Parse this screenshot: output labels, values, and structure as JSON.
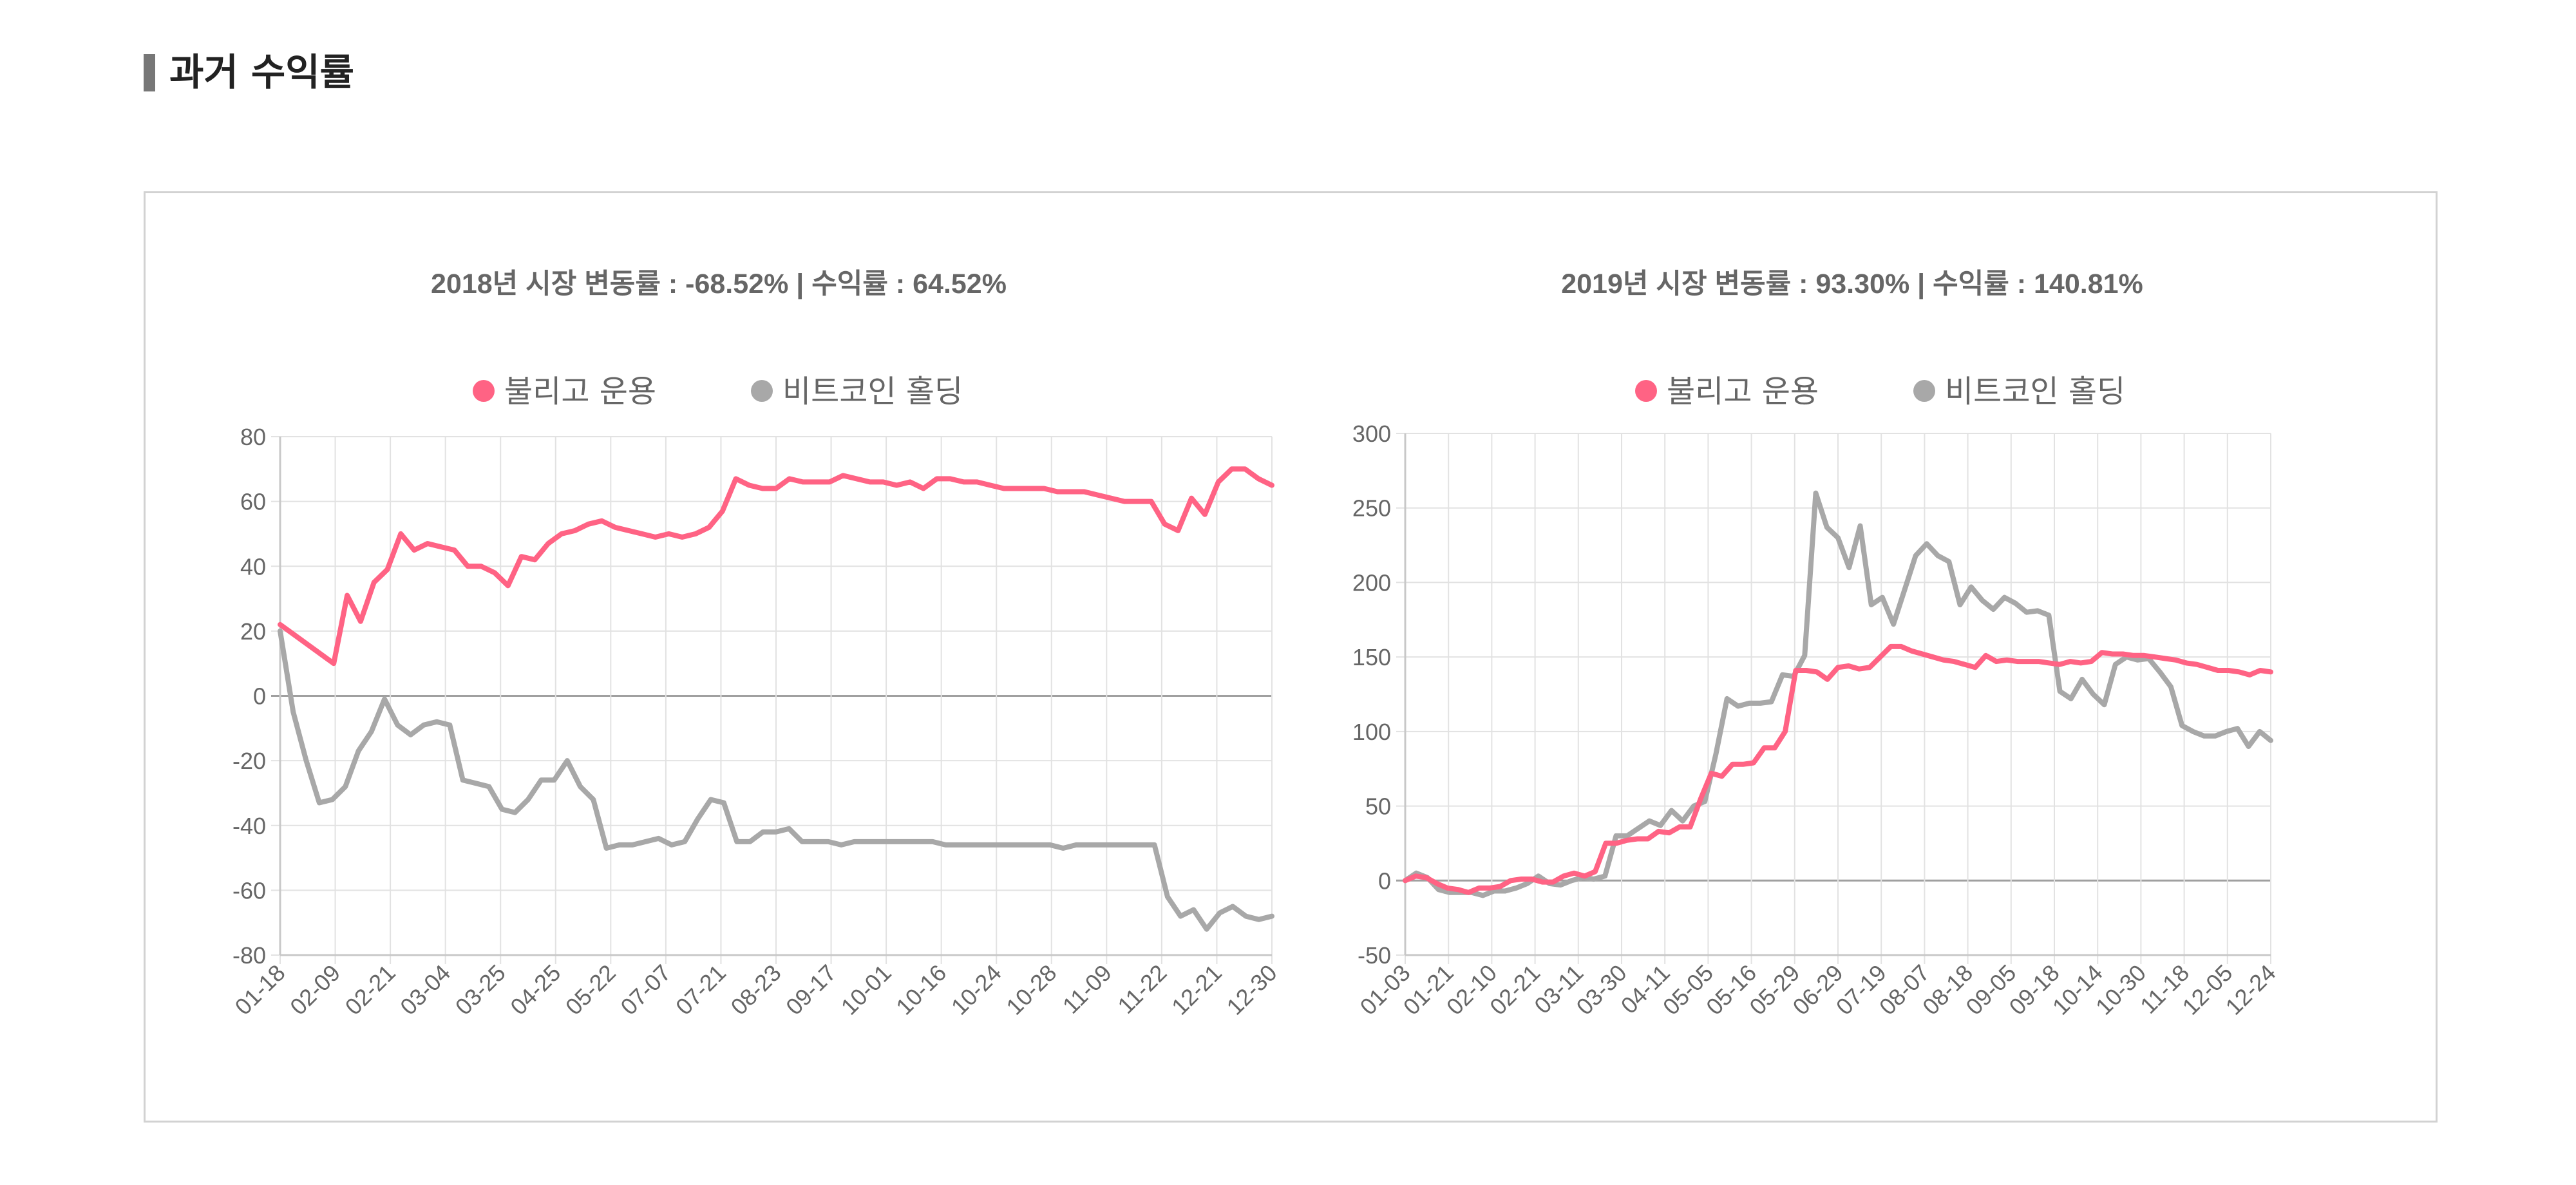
{
  "header": {
    "title": "과거 수익률"
  },
  "chart_data": [
    {
      "type": "line",
      "title": "2018년 시장 변동률 : -68.52%  |  수익률 : 64.52%",
      "legend": "top",
      "grid": true,
      "ylim": [
        -80,
        80
      ],
      "yticks": [
        80,
        60,
        40,
        20,
        0,
        -20,
        -40,
        -60,
        -80
      ],
      "xtick_labels": [
        "01-18",
        "02-09",
        "02-21",
        "03-04",
        "03-25",
        "04-25",
        "05-22",
        "07-07",
        "07-21",
        "08-23",
        "09-17",
        "10-01",
        "10-16",
        "10-24",
        "10-28",
        "11-09",
        "11-22",
        "12-21",
        "12-30"
      ],
      "series": [
        {
          "name": "불리고 운용",
          "color": "#ff6384",
          "values": [
            22,
            19,
            16,
            13,
            10,
            31,
            23,
            35,
            39,
            50,
            45,
            47,
            46,
            45,
            40,
            40,
            38,
            34,
            43,
            42,
            47,
            50,
            51,
            53,
            54,
            52,
            51,
            50,
            49,
            50,
            49,
            50,
            52,
            57,
            67,
            65,
            64,
            64,
            67,
            66,
            66,
            66,
            68,
            67,
            66,
            66,
            65,
            66,
            64,
            67,
            67,
            66,
            66,
            65,
            64,
            64,
            64,
            64,
            63,
            63,
            63,
            62,
            61,
            60,
            60,
            60,
            53,
            51,
            61,
            56,
            66,
            70,
            70,
            67,
            65
          ]
        },
        {
          "name": "비트코인 홀딩",
          "color": "#a8a8a8",
          "values": [
            20,
            -5,
            -20,
            -33,
            -32,
            -28,
            -17,
            -11,
            -1,
            -9,
            -12,
            -9,
            -8,
            -9,
            -26,
            -27,
            -28,
            -35,
            -36,
            -32,
            -26,
            -26,
            -20,
            -28,
            -32,
            -47,
            -46,
            -46,
            -45,
            -44,
            -46,
            -45,
            -38,
            -32,
            -33,
            -45,
            -45,
            -42,
            -42,
            -41,
            -45,
            -45,
            -45,
            -46,
            -45,
            -45,
            -45,
            -45,
            -45,
            -45,
            -45,
            -46,
            -46,
            -46,
            -46,
            -46,
            -46,
            -46,
            -46,
            -46,
            -47,
            -46,
            -46,
            -46,
            -46,
            -46,
            -46,
            -46,
            -62,
            -68,
            -66,
            -72,
            -67,
            -65,
            -68,
            -69,
            -68
          ]
        }
      ]
    },
    {
      "type": "line",
      "title": "2019년 시장 변동률 : 93.30%  |  수익률 : 140.81%",
      "legend": "top",
      "grid": true,
      "ylim": [
        -50,
        300
      ],
      "yticks": [
        300,
        250,
        200,
        150,
        100,
        50,
        0,
        -50
      ],
      "xtick_labels": [
        "01-03",
        "01-21",
        "02-10",
        "02-21",
        "03-11",
        "03-30",
        "04-11",
        "05-05",
        "05-16",
        "05-29",
        "06-29",
        "07-19",
        "08-07",
        "08-18",
        "09-05",
        "09-18",
        "10-14",
        "10-30",
        "11-18",
        "12-05",
        "12-24"
      ],
      "series": [
        {
          "name": "불리고 운용",
          "color": "#ff6384",
          "values": [
            0,
            3,
            2,
            -2,
            -5,
            -6,
            -8,
            -5,
            -5,
            -4,
            0,
            1,
            1,
            -1,
            -1,
            3,
            5,
            3,
            6,
            25,
            25,
            27,
            28,
            28,
            33,
            32,
            36,
            36,
            55,
            72,
            70,
            78,
            78,
            79,
            89,
            89,
            100,
            141,
            141,
            140,
            135,
            143,
            144,
            142,
            143,
            150,
            157,
            157,
            154,
            152,
            150,
            148,
            147,
            145,
            143,
            151,
            147,
            148,
            147,
            147,
            147,
            146,
            145,
            147,
            146,
            147,
            153,
            152,
            152,
            151,
            151,
            150,
            149,
            148,
            146,
            145,
            143,
            141,
            141,
            140,
            138,
            141,
            140
          ]
        },
        {
          "name": "비트코인 홀딩",
          "color": "#a8a8a8",
          "values": [
            0,
            5,
            2,
            -6,
            -8,
            -8,
            -8,
            -10,
            -7,
            -7,
            -5,
            -2,
            3,
            -2,
            -3,
            0,
            2,
            1,
            3,
            30,
            30,
            35,
            40,
            37,
            47,
            40,
            50,
            53,
            85,
            122,
            117,
            119,
            119,
            120,
            138,
            137,
            151,
            260,
            237,
            230,
            210,
            238,
            185,
            190,
            172,
            195,
            218,
            226,
            218,
            214,
            185,
            197,
            188,
            182,
            190,
            186,
            180,
            181,
            178,
            127,
            122,
            135,
            125,
            118,
            145,
            150,
            148,
            149,
            140,
            130,
            104,
            100,
            97,
            97,
            100,
            102,
            90,
            100,
            94
          ]
        }
      ]
    }
  ]
}
